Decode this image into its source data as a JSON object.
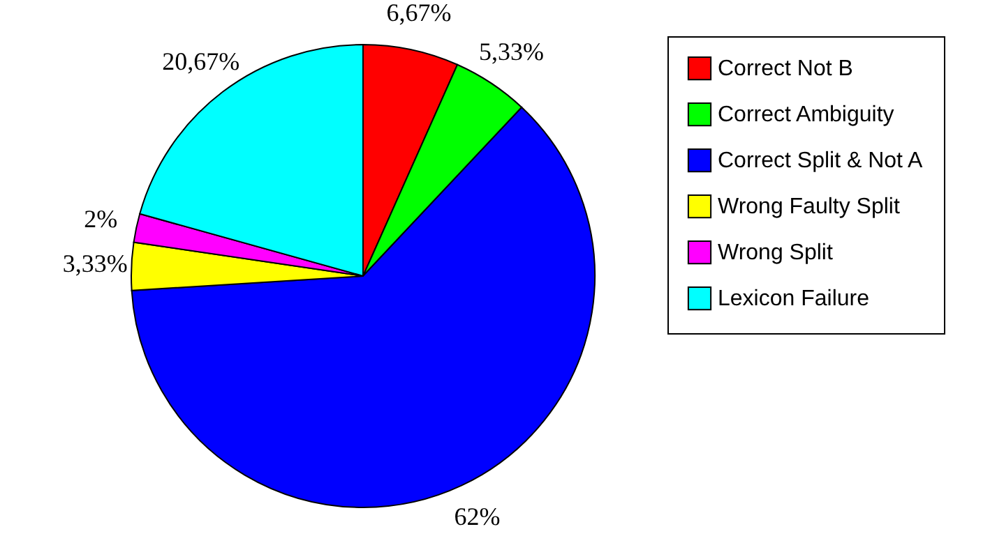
{
  "chart_data": {
    "type": "pie",
    "categories": [
      "Correct Not B",
      "Correct Ambiguity",
      "Correct Split & Not A",
      "Wrong Faulty Split",
      "Wrong Split",
      "Lexicon Failure"
    ],
    "values": [
      6.67,
      5.33,
      62,
      3.33,
      2,
      20.67
    ],
    "colors": [
      "#ff0000",
      "#00ff00",
      "#0000ff",
      "#ffff00",
      "#ff00ff",
      "#00ffff"
    ],
    "value_labels": [
      "6,67%",
      "5,33%",
      "62%",
      "3,33%",
      "2%",
      "20,67%"
    ],
    "legend": "right"
  }
}
